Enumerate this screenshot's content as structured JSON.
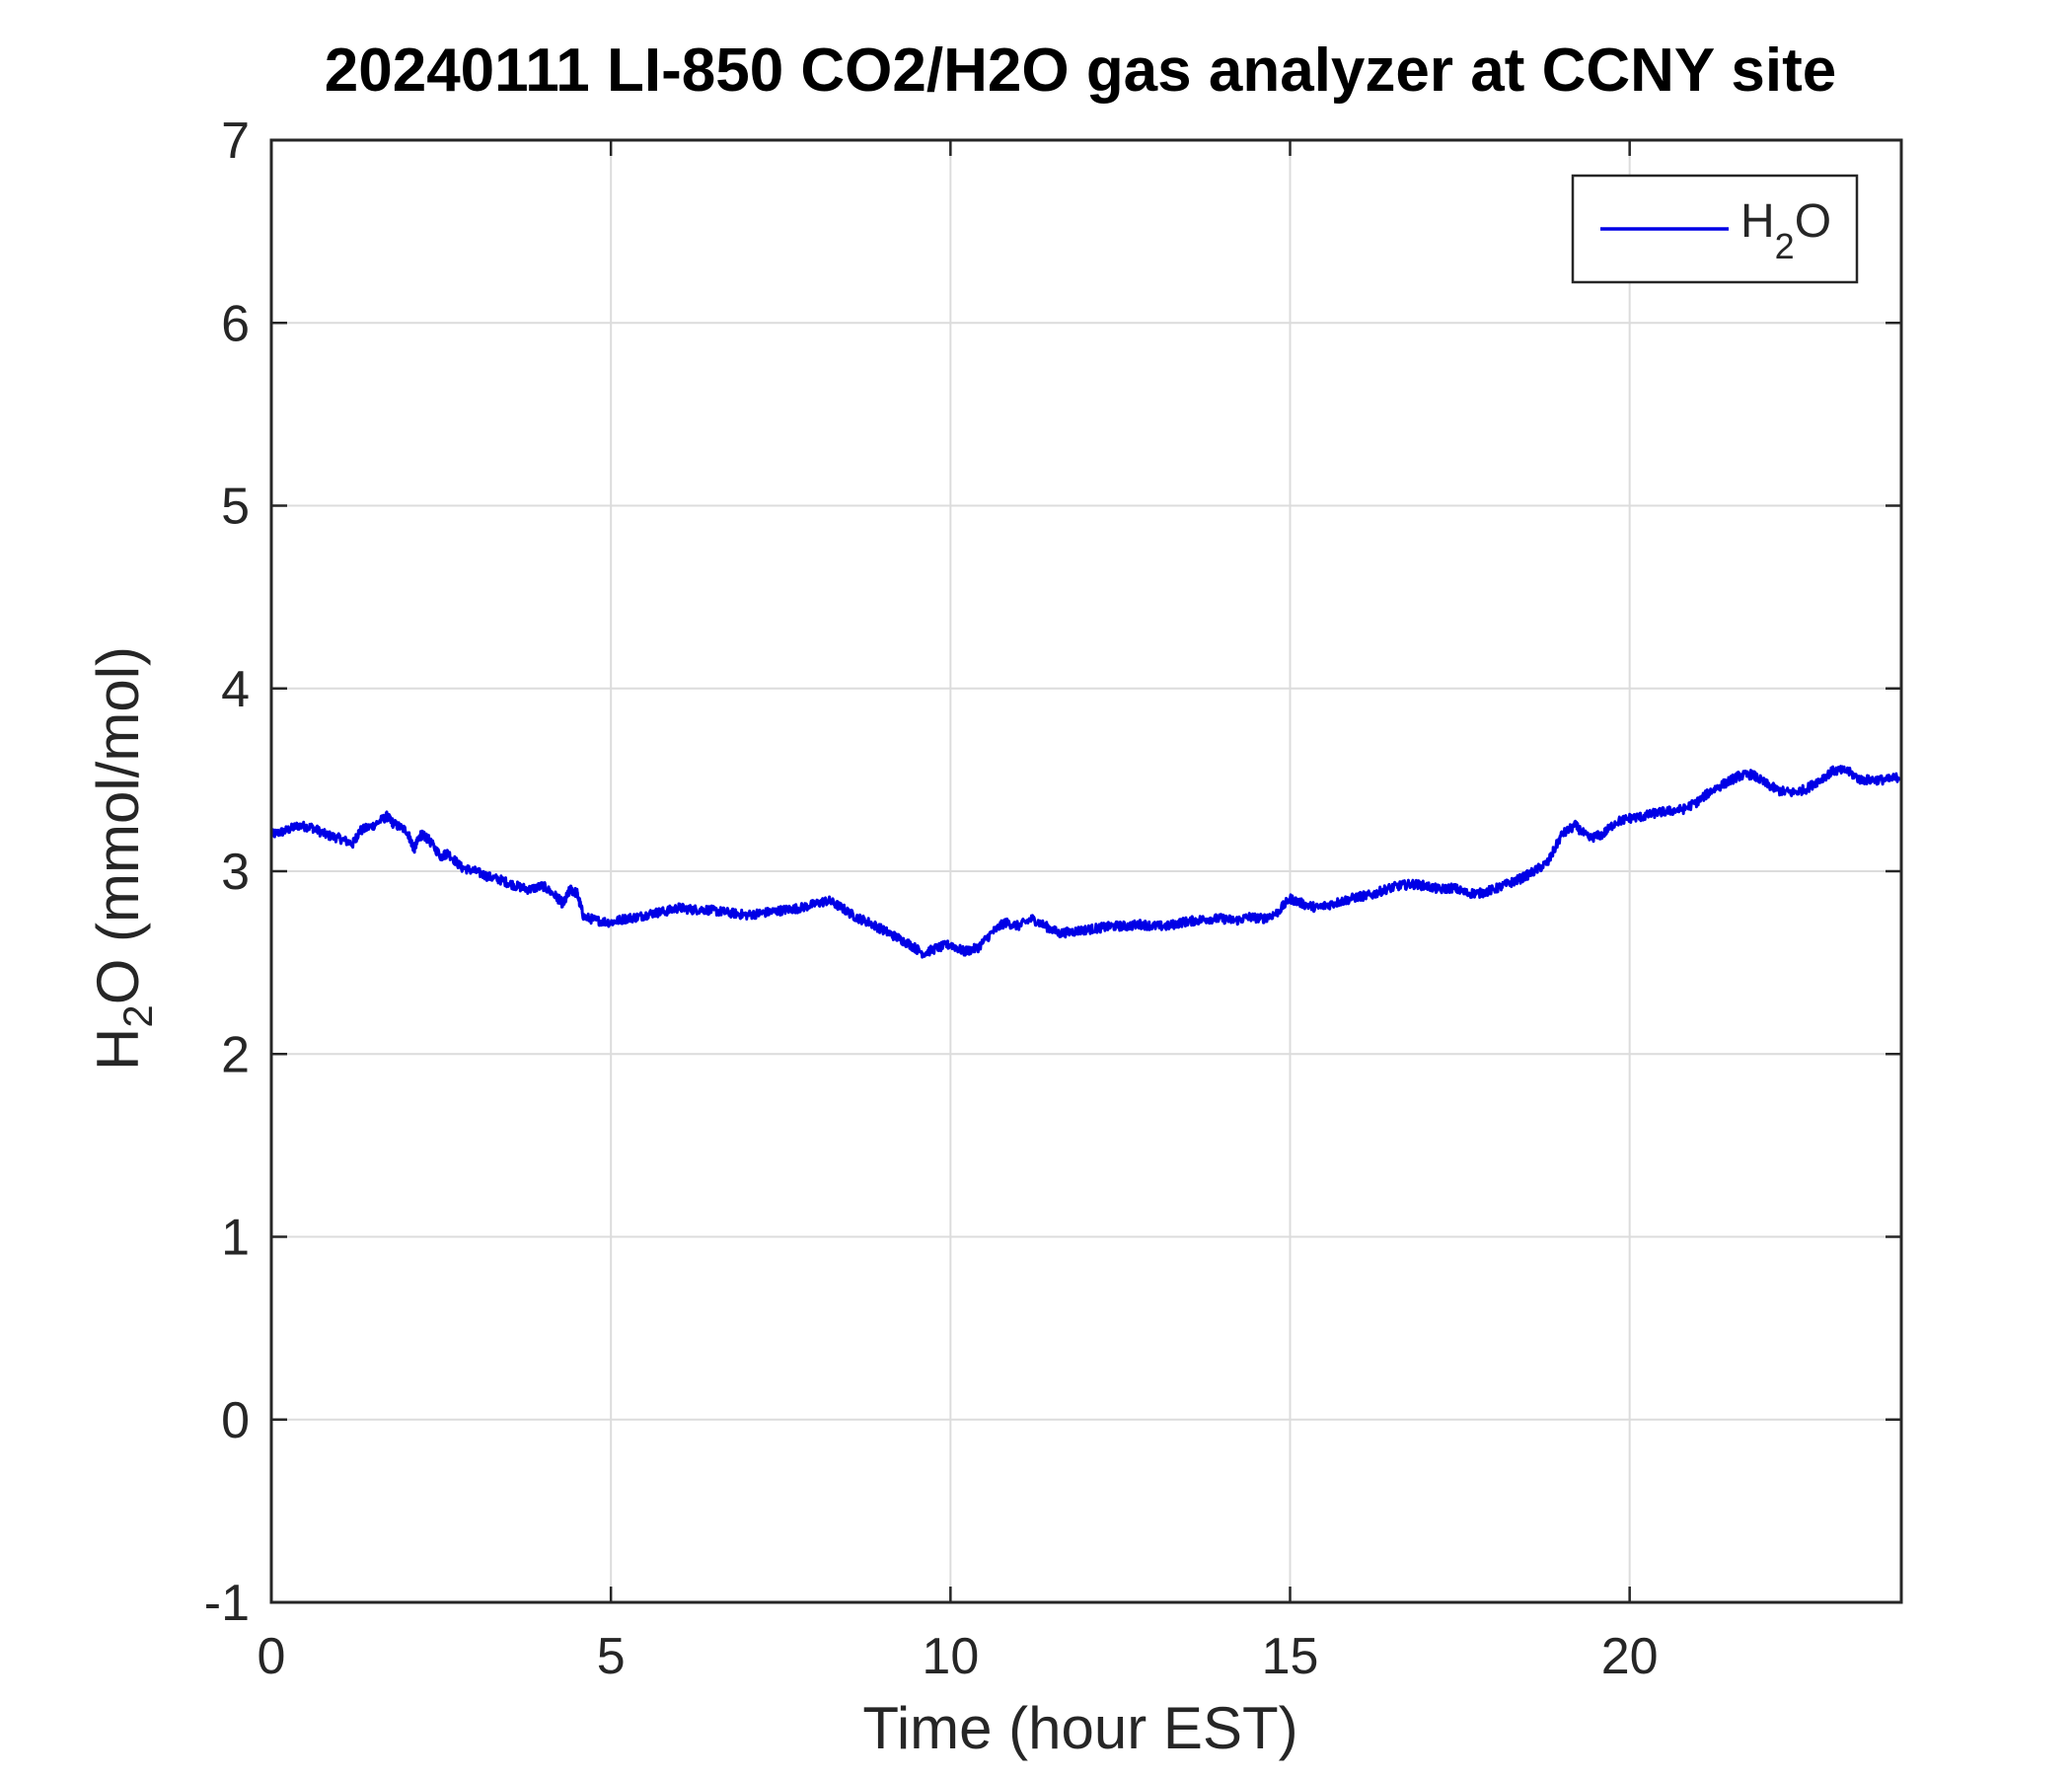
{
  "chart_data": {
    "type": "line",
    "title": "20240111 LI-850 CO2/H2O gas analyzer at CCNY site",
    "xlabel": "Time (hour EST)",
    "ylabel": {
      "base": "H",
      "sub": "2",
      "rest": "O (mmol/mol)"
    },
    "xlim": [
      0,
      24
    ],
    "ylim": [
      -1,
      7
    ],
    "xticks": [
      0,
      5,
      10,
      15,
      20
    ],
    "yticks": [
      -1,
      0,
      1,
      2,
      3,
      4,
      5,
      6,
      7
    ],
    "grid": true,
    "legend": {
      "position": "top-right",
      "entries": [
        {
          "base": "H",
          "sub": "2",
          "rest": "O"
        }
      ]
    },
    "series": [
      {
        "name": "H2O",
        "color": "#0000e6",
        "x": [
          0.0,
          0.2,
          0.4,
          0.6,
          0.8,
          1.0,
          1.2,
          1.3,
          1.5,
          1.7,
          1.8,
          2.0,
          2.1,
          2.2,
          2.3,
          2.5,
          2.6,
          2.8,
          3.0,
          3.2,
          3.4,
          3.6,
          3.8,
          4.0,
          4.2,
          4.3,
          4.4,
          4.5,
          4.6,
          4.8,
          5.0,
          5.2,
          5.4,
          5.6,
          5.8,
          6.0,
          6.2,
          6.4,
          6.6,
          6.8,
          7.0,
          7.2,
          7.4,
          7.6,
          7.8,
          8.0,
          8.2,
          8.4,
          8.6,
          8.8,
          9.0,
          9.2,
          9.4,
          9.6,
          9.8,
          10.0,
          10.2,
          10.4,
          10.6,
          10.8,
          11.0,
          11.2,
          11.4,
          11.6,
          11.8,
          12.0,
          12.2,
          12.4,
          12.6,
          12.8,
          13.0,
          13.2,
          13.4,
          13.6,
          13.8,
          14.0,
          14.2,
          14.4,
          14.6,
          14.8,
          15.0,
          15.2,
          15.4,
          15.6,
          15.8,
          16.0,
          16.2,
          16.4,
          16.6,
          16.8,
          17.0,
          17.2,
          17.4,
          17.6,
          17.8,
          18.0,
          18.2,
          18.4,
          18.6,
          18.8,
          19.0,
          19.2,
          19.4,
          19.6,
          19.8,
          20.0,
          20.2,
          20.4,
          20.6,
          20.8,
          21.0,
          21.2,
          21.4,
          21.6,
          21.8,
          22.0,
          22.2,
          22.4,
          22.6,
          22.8,
          23.0,
          23.2,
          23.4,
          23.6,
          23.8,
          24.0
        ],
        "y": [
          3.2,
          3.22,
          3.25,
          3.24,
          3.2,
          3.18,
          3.15,
          3.22,
          3.25,
          3.3,
          3.26,
          3.22,
          3.12,
          3.2,
          3.18,
          3.08,
          3.1,
          3.02,
          3.0,
          2.97,
          2.95,
          2.92,
          2.9,
          2.92,
          2.86,
          2.82,
          2.9,
          2.88,
          2.75,
          2.73,
          2.72,
          2.74,
          2.75,
          2.77,
          2.78,
          2.8,
          2.79,
          2.79,
          2.78,
          2.77,
          2.76,
          2.77,
          2.78,
          2.79,
          2.8,
          2.82,
          2.84,
          2.8,
          2.75,
          2.72,
          2.68,
          2.64,
          2.6,
          2.55,
          2.58,
          2.6,
          2.56,
          2.58,
          2.66,
          2.72,
          2.7,
          2.74,
          2.7,
          2.66,
          2.67,
          2.68,
          2.69,
          2.7,
          2.7,
          2.71,
          2.7,
          2.7,
          2.72,
          2.73,
          2.74,
          2.74,
          2.73,
          2.75,
          2.74,
          2.77,
          2.85,
          2.82,
          2.8,
          2.82,
          2.84,
          2.86,
          2.87,
          2.9,
          2.92,
          2.93,
          2.92,
          2.9,
          2.91,
          2.88,
          2.88,
          2.9,
          2.93,
          2.96,
          3.0,
          3.05,
          3.2,
          3.25,
          3.18,
          3.2,
          3.27,
          3.29,
          3.3,
          3.32,
          3.33,
          3.34,
          3.38,
          3.44,
          3.48,
          3.52,
          3.53,
          3.48,
          3.44,
          3.43,
          3.45,
          3.5,
          3.55,
          3.55,
          3.5,
          3.5,
          3.5,
          3.52
        ]
      }
    ]
  }
}
